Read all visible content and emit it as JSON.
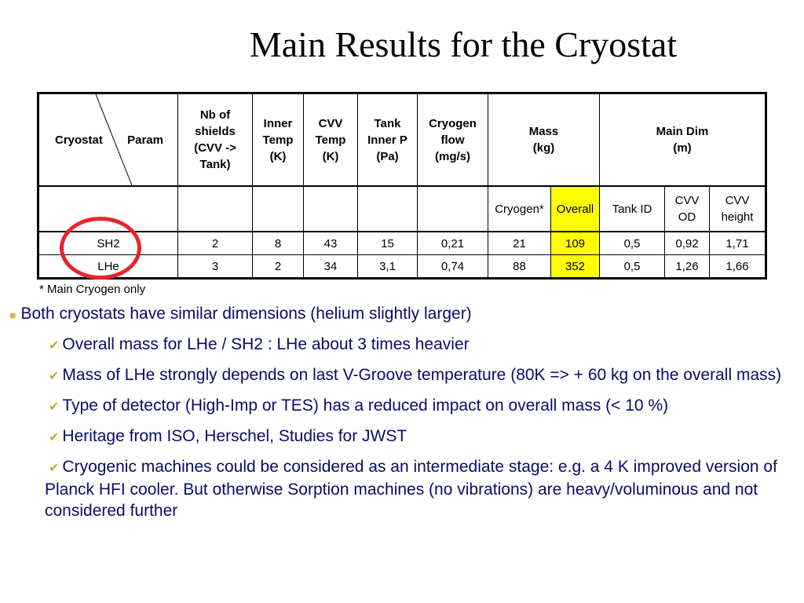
{
  "title": "Main Results for the Cryostat",
  "table": {
    "corner": [
      "Cryostat",
      "Param"
    ],
    "headers": [
      "Nb of\nshields\n(CVV ->\nTank)",
      "Inner\nTemp\n(K)",
      "CVV\nTemp\n(K)",
      "Tank\nInner P\n(Pa)",
      "Cryogen\nflow\n(mg/s)",
      "Mass\n(kg)",
      "Main Dim\n(m)"
    ],
    "subheaders": [
      "Cryogen*",
      "Overall",
      "Tank ID",
      "CVV\nOD",
      "CVV\nheight"
    ],
    "rows": [
      [
        "SH2",
        "2",
        "8",
        "43",
        "15",
        "0,21",
        "21",
        "109",
        "0,5",
        "0,92",
        "1,71"
      ],
      [
        "LHe",
        "3",
        "2",
        "34",
        "3,1",
        "0,74",
        "88",
        "352",
        "0,5",
        "1,26",
        "1,66"
      ]
    ]
  },
  "footnote": "* Main Cryogen only",
  "bullets": [
    {
      "text": "Both cryostats have similar dimensions (helium slightly larger)",
      "level": 1
    },
    {
      "text": "Overall mass for LHe / SH2 : LHe about 3 times heavier",
      "level": 2
    },
    {
      "text": "Mass of LHe strongly depends on last V-Groove temperature (80K => + 60 kg on the overall mass)",
      "level": 2
    },
    {
      "text": "Type of detector (High-Imp or TES) has a reduced impact on overall mass (< 10 %)",
      "level": 2
    },
    {
      "text": "Heritage from ISO, Herschel, Studies for JWST",
      "level": 2
    },
    {
      "text": "Cryogenic machines could be considered as an intermediate stage: e.g. a 4 K improved version of Planck HFI cooler. But otherwise Sorption machines (no vibrations) are heavy/voluminous and not considered further",
      "level": 2
    }
  ]
}
